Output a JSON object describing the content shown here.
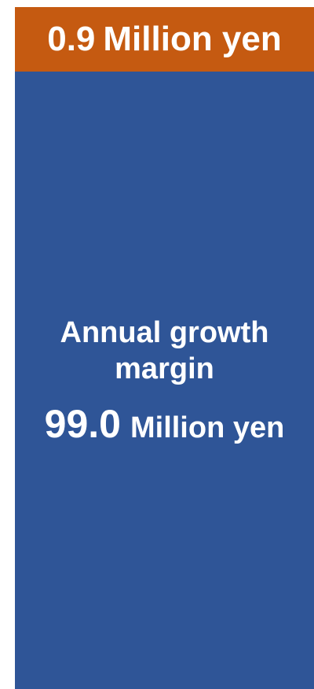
{
  "chart_data": {
    "type": "bar",
    "title": "",
    "xlabel": "",
    "ylabel": "",
    "categories": [
      ""
    ],
    "series": [
      {
        "name": "Annual growth margin",
        "values": [
          99.0
        ],
        "value_text": "99.0",
        "unit": "Million yen",
        "color": "#2f5597"
      },
      {
        "name": "",
        "values": [
          0.9
        ],
        "value_text": "0.9",
        "unit": "Million yen",
        "color": "#c55a11"
      }
    ]
  },
  "labels": {
    "top_number": "0.9",
    "top_unit": "Million yen",
    "main_label": "Annual growth margin",
    "main_number": "99.0",
    "main_unit": "Million yen"
  },
  "colors": {
    "growth_margin": "#2f5597",
    "top_segment": "#c55a11",
    "text": "#ffffff"
  }
}
